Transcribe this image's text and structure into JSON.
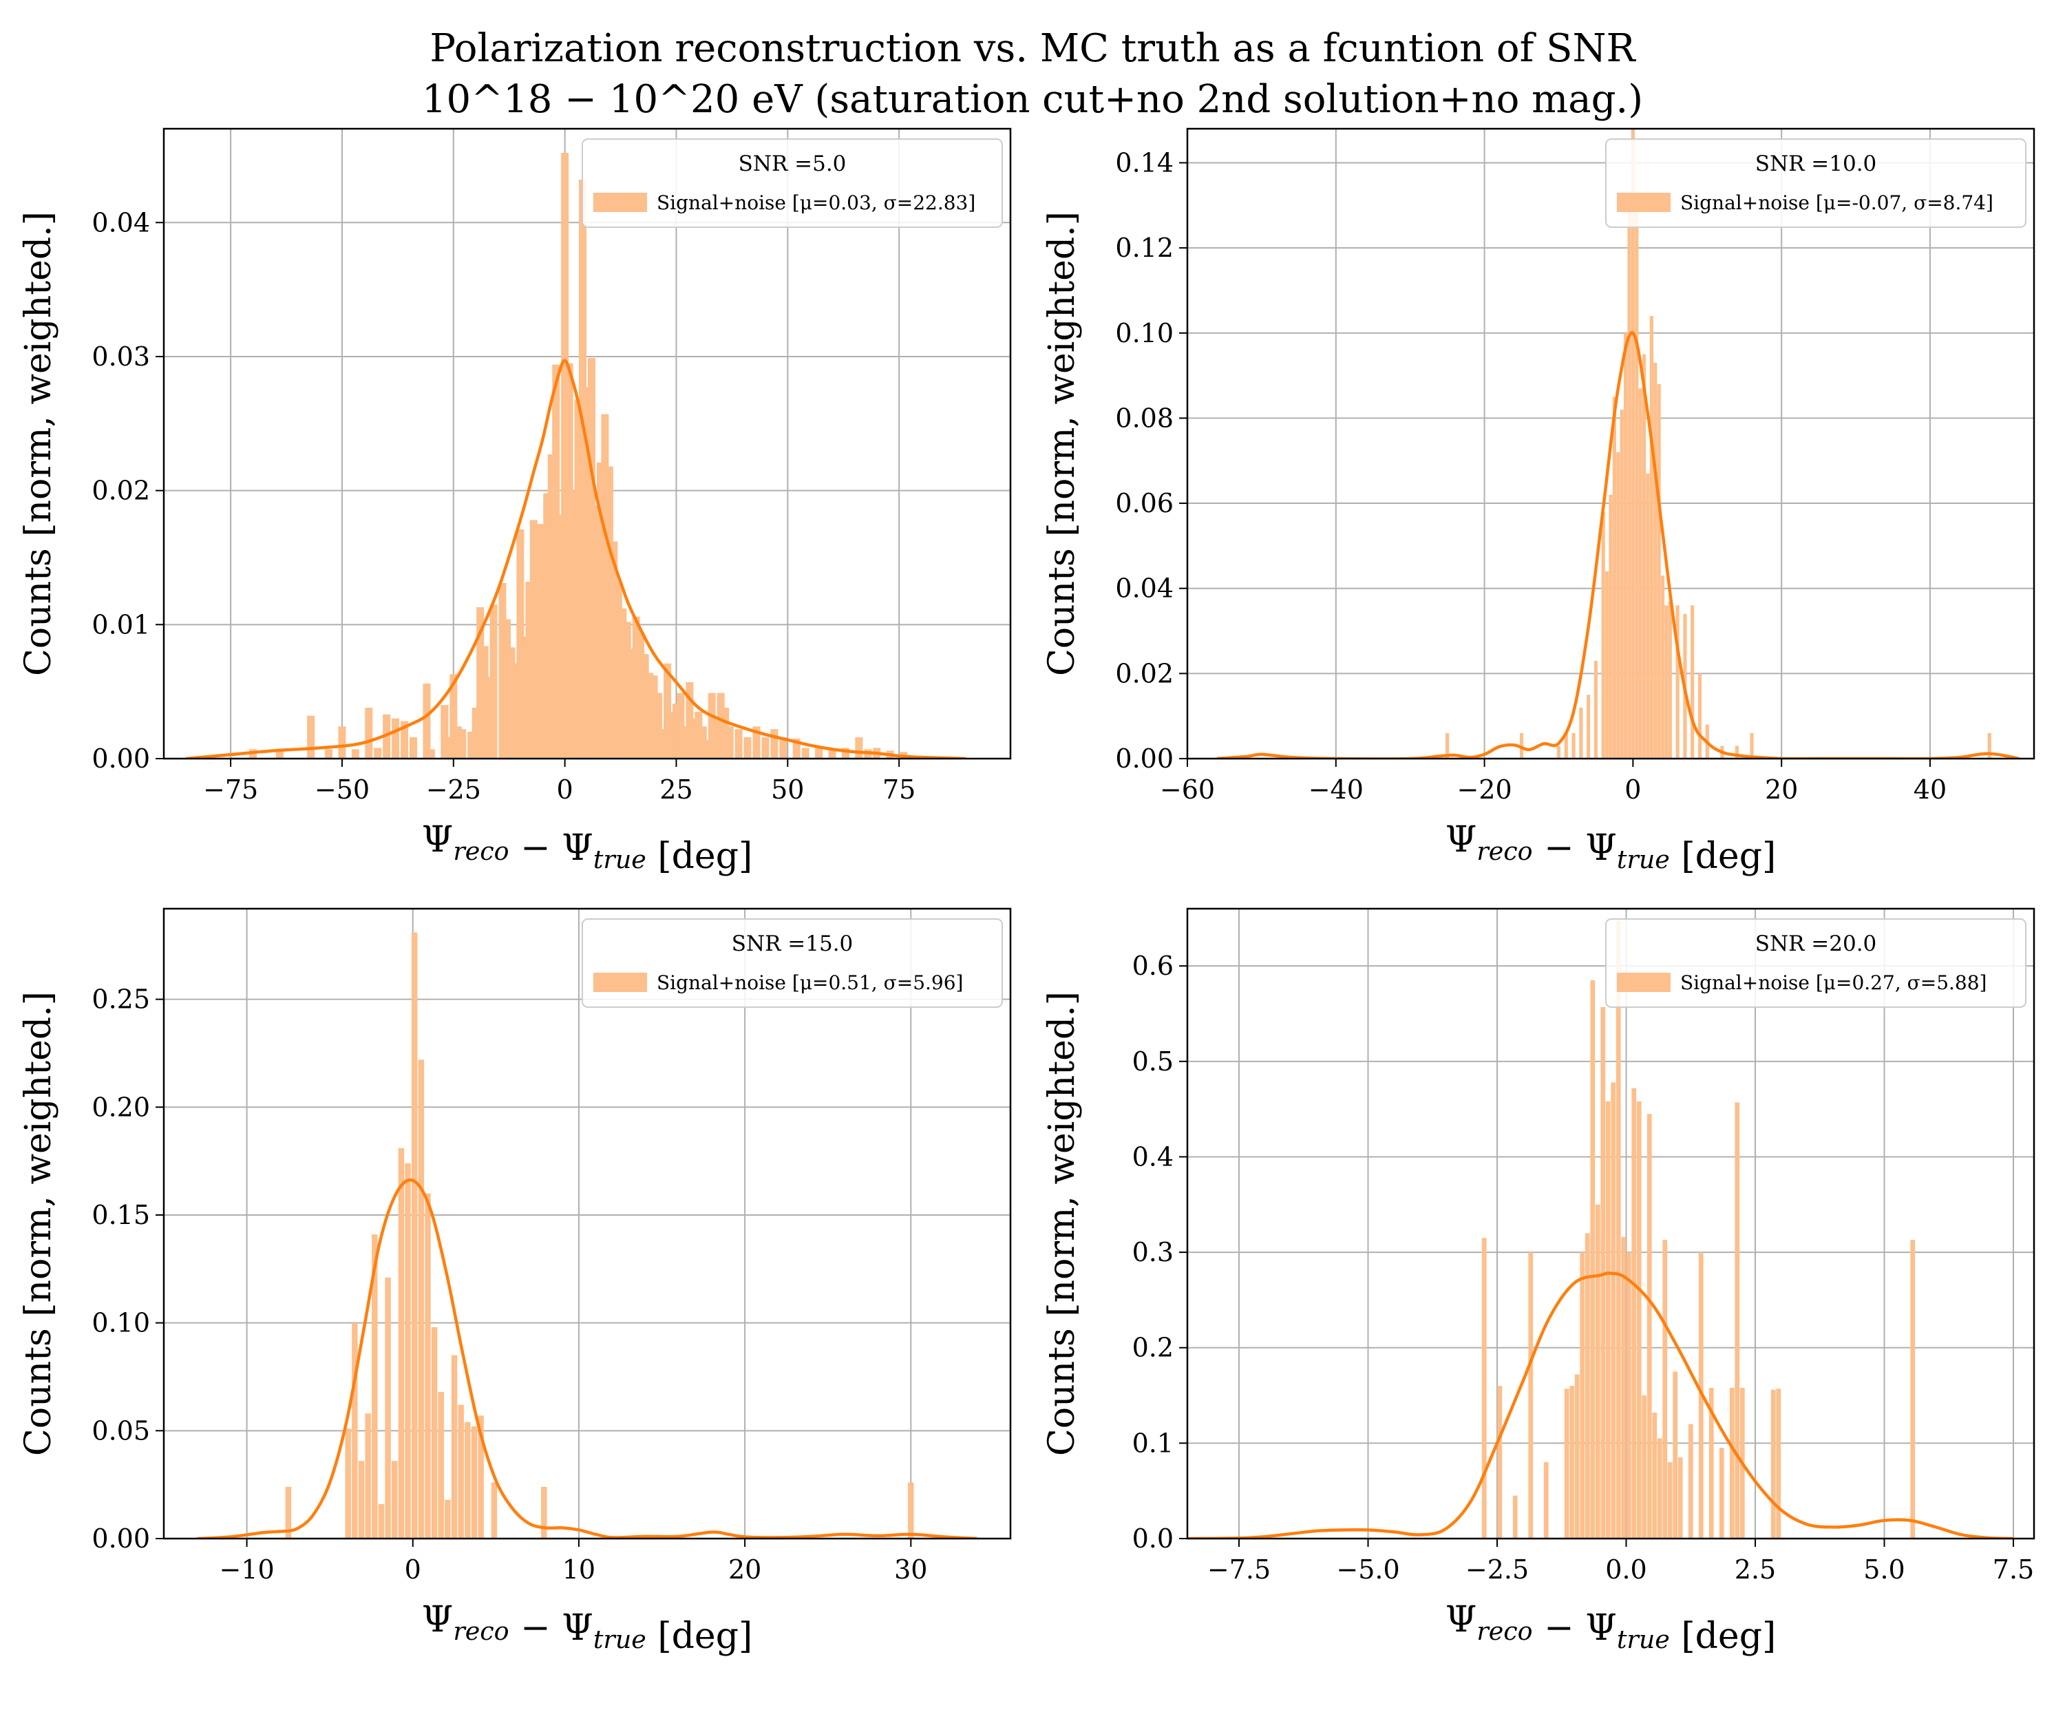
{
  "figure": {
    "title_line1": "Polarization reconstruction vs. MC truth as a fcuntion of SNR",
    "title_line2": "10^18 − 10^20 eV (saturation cut+no 2nd solution+no mag.)",
    "colors": {
      "hist": "#fdbf8c",
      "kde": "#ff7f0e",
      "grid": "#b0b0b0"
    }
  },
  "chart_data": [
    {
      "type": "bar",
      "xlabel": "Ψ_reco − Ψ_true [deg]",
      "ylabel": "Counts [norm, weighted.]",
      "xlim": [
        -90,
        100
      ],
      "ylim": [
        0,
        0.047
      ],
      "xticks": [
        -75,
        -50,
        -25,
        0,
        25,
        50,
        75
      ],
      "xtick_labels": [
        "−75",
        "−50",
        "−25",
        "0",
        "25",
        "50",
        "75"
      ],
      "yticks": [
        0,
        0.01,
        0.02,
        0.03,
        0.04
      ],
      "ytick_labels": [
        "0.00",
        "0.01",
        "0.02",
        "0.03",
        "0.04"
      ],
      "legend_title": "SNR =5.0",
      "legend_label": "Signal+noise [μ=0.03, σ=22.83]",
      "bins": {
        "x": [
          -70,
          -64,
          -57,
          -53,
          -50,
          -47,
          -44,
          -42,
          -40,
          -38,
          -36,
          -34,
          -31,
          -30,
          -27,
          -26,
          -25,
          -24,
          -23,
          -21,
          -20,
          -19,
          -18,
          -17,
          -16,
          -14,
          -13,
          -12,
          -11,
          -10,
          -9,
          -8,
          -7,
          -6,
          -5,
          -4,
          -3,
          -2,
          -1,
          0,
          1,
          2,
          3,
          4,
          5,
          6,
          7,
          8,
          9,
          10,
          11,
          12,
          13,
          14,
          15,
          16,
          17,
          18,
          19,
          20,
          21,
          22,
          23,
          24,
          25,
          26,
          27,
          28,
          29,
          30,
          31,
          32,
          33,
          34,
          35,
          36,
          37,
          39,
          41,
          43,
          45,
          47,
          49,
          52,
          54,
          57,
          60,
          63,
          66,
          68,
          70,
          73,
          76
        ],
        "w": 1.7,
        "h": [
          0.0007,
          0.0007,
          0.0032,
          0.0007,
          0.0024,
          0.0007,
          0.0038,
          0.0008,
          0.0033,
          0.003,
          0.0028,
          0.0016,
          0.0056,
          0.0007,
          0.004,
          0.0016,
          0.0063,
          0.0024,
          0.0022,
          0.002,
          0.0038,
          0.0113,
          0.0084,
          0.0061,
          0.0115,
          0.0131,
          0.0104,
          0.0083,
          0.0071,
          0.0171,
          0.0091,
          0.0132,
          0.0178,
          0.0175,
          0.0175,
          0.0198,
          0.0227,
          0.0294,
          0.0182,
          0.0452,
          0.0295,
          0.02,
          0.0268,
          0.0432,
          0.0277,
          0.0299,
          0.0189,
          0.0221,
          0.0257,
          0.0218,
          0.0162,
          0.0132,
          0.0112,
          0.0102,
          0.0082,
          0.0106,
          0.0094,
          0.0078,
          0.0064,
          0.0062,
          0.0049,
          0.0022,
          0.0071,
          0.0035,
          0.0041,
          0.0049,
          0.0024,
          0.0057,
          0.003,
          0.0035,
          0.0024,
          0.0014,
          0.0049,
          0.0029,
          0.0049,
          0.0038,
          0.0024,
          0.0022,
          0.0016,
          0.0024,
          0.0016,
          0.0022,
          0.0016,
          0.0015,
          0.0008,
          0.0008,
          0.0007,
          0.0008,
          0.0016,
          0.0007,
          0.0008,
          0.0006,
          0.0005
        ]
      },
      "kde": {
        "x": [
          -85,
          -75,
          -65,
          -55,
          -45,
          -35,
          -30,
          -25,
          -20,
          -15,
          -10,
          -7,
          -5,
          -3,
          -1,
          0,
          1,
          3,
          5,
          7,
          10,
          13,
          15,
          20,
          25,
          30,
          35,
          40,
          45,
          50,
          55,
          60,
          65,
          70,
          75,
          80,
          85,
          90
        ],
        "y": [
          0,
          0.0003,
          0.0006,
          0.0008,
          0.0012,
          0.0025,
          0.0035,
          0.0056,
          0.0087,
          0.0126,
          0.0178,
          0.0214,
          0.0238,
          0.0267,
          0.0291,
          0.0297,
          0.029,
          0.0266,
          0.0233,
          0.0197,
          0.0157,
          0.0127,
          0.011,
          0.0078,
          0.0057,
          0.0038,
          0.0029,
          0.0023,
          0.0018,
          0.0014,
          0.001,
          0.0007,
          0.0005,
          0.0004,
          0.0002,
          0.0001,
          5e-05,
          0
        ]
      }
    },
    {
      "type": "bar",
      "xlabel": "Ψ_reco − Ψ_true [deg]",
      "ylabel": "Counts [norm, weighted.]",
      "xlim": [
        -60,
        54
      ],
      "ylim": [
        0,
        0.148
      ],
      "xticks": [
        -60,
        -40,
        -20,
        0,
        20,
        40
      ],
      "xtick_labels": [
        "−60",
        "−40",
        "−20",
        "0",
        "20",
        "40"
      ],
      "yticks": [
        0,
        0.02,
        0.04,
        0.06,
        0.08,
        0.1,
        0.12,
        0.14
      ],
      "ytick_labels": [
        "0.00",
        "0.02",
        "0.04",
        "0.06",
        "0.08",
        "0.10",
        "0.12",
        "0.14"
      ],
      "legend_title": "SNR =10.0",
      "legend_label": "Signal+noise [μ=-0.07, σ=8.74]",
      "bins": {
        "x": [
          -25,
          -15,
          -10,
          -9,
          -8,
          -7,
          -6,
          -5,
          -4,
          -3.5,
          -3,
          -2.5,
          -2,
          -1.5,
          -1,
          -0.5,
          0,
          0.5,
          1,
          1.5,
          2,
          2.5,
          3,
          3.5,
          4,
          4.5,
          5,
          6,
          7,
          8,
          9,
          10,
          12,
          14,
          16,
          48
        ],
        "w": 0.48,
        "h": [
          0.006,
          0.006,
          0.003,
          0.006,
          0.006,
          0.012,
          0.015,
          0.023,
          0.058,
          0.044,
          0.062,
          0.085,
          0.072,
          0.082,
          0.1,
          0.133,
          0.148,
          0.133,
          0.087,
          0.095,
          0.067,
          0.104,
          0.093,
          0.088,
          0.043,
          0.036,
          0.037,
          0.036,
          0.034,
          0.036,
          0.02,
          0.008,
          0.003,
          0.003,
          0.006,
          0.006
        ]
      },
      "kde": {
        "x": [
          -56,
          -52,
          -50,
          -46,
          -40,
          -30,
          -26,
          -24,
          -22,
          -20,
          -18,
          -16,
          -14,
          -12,
          -10,
          -8,
          -6,
          -4,
          -2,
          0,
          2,
          4,
          6,
          8,
          10,
          12,
          14,
          16,
          20,
          25,
          30,
          35,
          40,
          44,
          47,
          49,
          52
        ],
        "y": [
          0,
          0.0005,
          0.001,
          0.0003,
          0,
          0,
          0.0006,
          0.0008,
          0.0003,
          0.001,
          0.0028,
          0.0032,
          0.0021,
          0.0035,
          0.0036,
          0.011,
          0.031,
          0.059,
          0.087,
          0.1,
          0.081,
          0.053,
          0.026,
          0.009,
          0.0038,
          0.0015,
          0.0008,
          0.0004,
          0,
          0,
          0,
          0,
          0,
          0.0003,
          0.0011,
          0.001,
          0
        ]
      }
    },
    {
      "type": "bar",
      "xlabel": "Ψ_reco − Ψ_true [deg]",
      "ylabel": "Counts [norm, weighted.]",
      "xlim": [
        -15,
        36
      ],
      "ylim": [
        0,
        0.292
      ],
      "xticks": [
        -10,
        0,
        10,
        20,
        30
      ],
      "xtick_labels": [
        "−10",
        "0",
        "10",
        "20",
        "30"
      ],
      "yticks": [
        0,
        0.05,
        0.1,
        0.15,
        0.2,
        0.25
      ],
      "ytick_labels": [
        "0.00",
        "0.05",
        "0.10",
        "0.15",
        "0.20",
        "0.25"
      ],
      "legend_title": "SNR =15.0",
      "legend_label": "Signal+noise [μ=0.51, σ=5.96]",
      "bins": {
        "x": [
          -7.5,
          -3.9,
          -3.5,
          -3.1,
          -2.7,
          -2.3,
          -1.9,
          -1.5,
          -1.1,
          -0.7,
          -0.3,
          0.1,
          0.5,
          0.9,
          1.3,
          1.7,
          2.1,
          2.5,
          2.9,
          3.3,
          3.7,
          4.1,
          4.9,
          7.9,
          30
        ],
        "w": 0.35,
        "h": [
          0.024,
          0.051,
          0.1,
          0.036,
          0.058,
          0.141,
          0.016,
          0.121,
          0.036,
          0.181,
          0.174,
          0.281,
          0.222,
          0.16,
          0.098,
          0.068,
          0.018,
          0.085,
          0.062,
          0.054,
          0.052,
          0.057,
          0.026,
          0.024,
          0.026
        ]
      },
      "kde": {
        "x": [
          -13,
          -11,
          -9,
          -8,
          -7,
          -6,
          -5,
          -4,
          -3,
          -2,
          -1,
          0,
          1,
          2,
          3,
          4,
          5,
          6,
          7,
          8,
          9,
          10,
          11,
          12,
          14,
          16,
          18,
          19,
          20,
          22,
          24,
          26,
          28,
          30,
          32,
          34
        ],
        "y": [
          0,
          0.0008,
          0.0028,
          0.0033,
          0.0045,
          0.011,
          0.026,
          0.054,
          0.095,
          0.137,
          0.16,
          0.166,
          0.154,
          0.124,
          0.086,
          0.051,
          0.027,
          0.014,
          0.007,
          0.005,
          0.005,
          0.004,
          0.002,
          0.0005,
          0.001,
          0.001,
          0.003,
          0.002,
          0.0008,
          0.0005,
          0.001,
          0.002,
          0.0013,
          0.002,
          0.0008,
          0
        ]
      }
    },
    {
      "type": "bar",
      "xlabel": "Ψ_reco − Ψ_true [deg]",
      "ylabel": "Counts [norm, weighted.]",
      "xlim": [
        -8.5,
        7.9
      ],
      "ylim": [
        0,
        0.66
      ],
      "xticks": [
        -7.5,
        -5,
        -2.5,
        0,
        2.5,
        5,
        7.5
      ],
      "xtick_labels": [
        "−7.5",
        "−5.0",
        "−2.5",
        "0.0",
        "2.5",
        "5.0",
        "7.5"
      ],
      "yticks": [
        0,
        0.1,
        0.2,
        0.3,
        0.4,
        0.5,
        0.6
      ],
      "ytick_labels": [
        "0.0",
        "0.1",
        "0.2",
        "0.3",
        "0.4",
        "0.5",
        "0.6"
      ],
      "legend_title": "SNR =20.0",
      "legend_label": "Signal+noise [μ=0.27, σ=5.88]",
      "bins": {
        "x": [
          -2.75,
          -2.45,
          -2.15,
          -1.85,
          -1.55,
          -1.15,
          -1.05,
          -0.95,
          -0.85,
          -0.75,
          -0.65,
          -0.55,
          -0.45,
          -0.35,
          -0.25,
          -0.15,
          -0.05,
          0.05,
          0.15,
          0.25,
          0.35,
          0.45,
          0.55,
          0.65,
          0.75,
          0.85,
          0.95,
          1.05,
          1.25,
          1.45,
          1.65,
          1.85,
          2.05,
          2.15,
          2.25,
          2.85,
          2.95,
          5.55
        ],
        "w": 0.09,
        "h": [
          0.315,
          0.16,
          0.045,
          0.3,
          0.08,
          0.157,
          0.16,
          0.172,
          0.3,
          0.32,
          0.585,
          0.35,
          0.557,
          0.458,
          0.478,
          0.647,
          0.316,
          0.3,
          0.472,
          0.458,
          0.15,
          0.445,
          0.132,
          0.105,
          0.313,
          0.08,
          0.175,
          0.085,
          0.12,
          0.3,
          0.158,
          0.095,
          0.158,
          0.457,
          0.158,
          0.156,
          0.157,
          0.313
        ]
      },
      "kde": {
        "x": [
          -8.5,
          -7.5,
          -7,
          -6.5,
          -6,
          -5.5,
          -5,
          -4.5,
          -4,
          -3.5,
          -3,
          -2.5,
          -2,
          -1.5,
          -1,
          -0.5,
          -0.3,
          0,
          0.5,
          1,
          1.5,
          2,
          2.5,
          3,
          3.5,
          4,
          4.5,
          5,
          5.5,
          6,
          6.5,
          7,
          7.5
        ],
        "y": [
          0,
          0.0005,
          0.002,
          0.005,
          0.008,
          0.009,
          0.009,
          0.007,
          0.004,
          0.01,
          0.04,
          0.1,
          0.165,
          0.23,
          0.268,
          0.276,
          0.278,
          0.273,
          0.246,
          0.2,
          0.148,
          0.1,
          0.06,
          0.03,
          0.015,
          0.012,
          0.014,
          0.019,
          0.019,
          0.012,
          0.004,
          0.0008,
          0
        ]
      }
    }
  ]
}
